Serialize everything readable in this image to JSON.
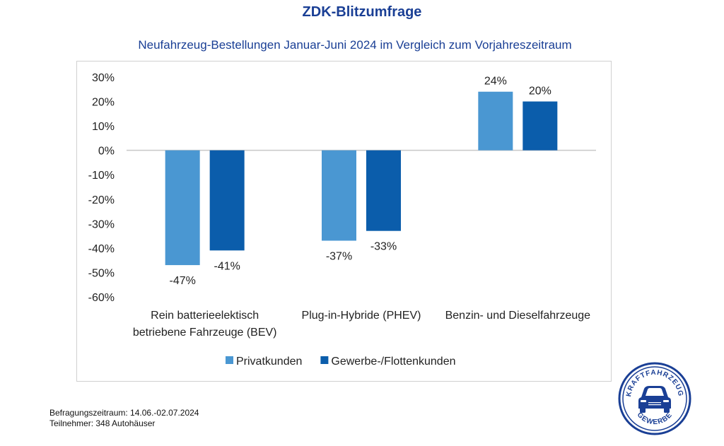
{
  "header": {
    "title": "ZDK-Blitzumfrage",
    "subtitle": "Neufahrzeug-Bestellungen Januar-Juni 2024 im Vergleich zum Vorjahreszeitraum"
  },
  "footer": {
    "line1": "Befragungszeitraum: 14.06.-02.07.2024",
    "line2": "Teilnehmer: 348 Autohäuser"
  },
  "logo": {
    "top_text": "KRAFTFAHRZEUG",
    "bottom_text": "GEWERBE",
    "color": "#1a3f95"
  },
  "chart_data": {
    "type": "bar",
    "title": "ZDK-Blitzumfrage",
    "subtitle": "Neufahrzeug-Bestellungen Januar-Juni 2024 im Vergleich zum Vorjahreszeitraum",
    "xlabel": "",
    "ylabel": "",
    "categories": [
      [
        "Rein batterieelektisch",
        "betriebene Fahrzeuge (BEV)"
      ],
      [
        "Plug-in-Hybride (PHEV)"
      ],
      [
        "Benzin- und Dieselfahrzeuge"
      ]
    ],
    "series": [
      {
        "name": "Privatkunden",
        "color": "#4a97d2",
        "values": [
          -47,
          -37,
          24
        ]
      },
      {
        "name": "Gewerbe-/Flottenkunden",
        "color": "#0b5dab",
        "values": [
          -41,
          -33,
          20
        ]
      }
    ],
    "value_suffix": "%",
    "ylim": [
      -60,
      30
    ],
    "yticks": [
      30,
      20,
      10,
      0,
      -10,
      -20,
      -30,
      -40,
      -50,
      -60
    ],
    "ytick_labels": [
      "30%",
      "20%",
      "10%",
      "0%",
      "-10%",
      "-20%",
      "-30%",
      "-40%",
      "-50%",
      "-60%"
    ],
    "grid": false,
    "legend": "bottom"
  }
}
